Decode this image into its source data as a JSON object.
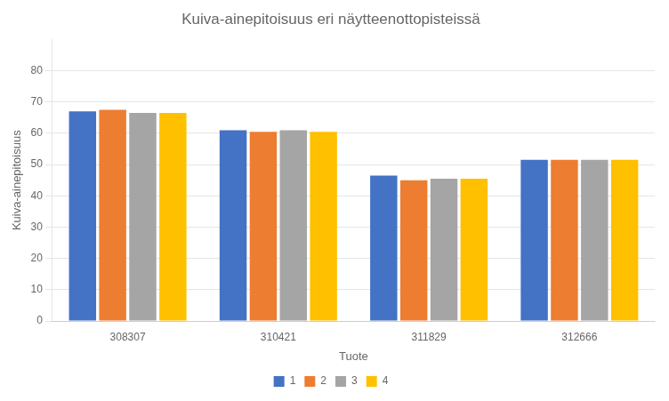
{
  "chart_data": {
    "type": "bar",
    "title": "Kuiva-ainepitoisuus eri näytteenottopisteissä",
    "xlabel": "Tuote",
    "ylabel": "Kuiva-ainepitoisuus",
    "categories": [
      "308307",
      "310421",
      "311829",
      "312666"
    ],
    "series": [
      {
        "name": "1",
        "color": "#4472C4",
        "values": [
          67.0,
          61.0,
          46.5,
          51.5
        ]
      },
      {
        "name": "2",
        "color": "#ED7D31",
        "values": [
          67.5,
          60.5,
          45.0,
          51.5
        ]
      },
      {
        "name": "3",
        "color": "#A5A5A5",
        "values": [
          66.5,
          61.0,
          45.5,
          51.5
        ]
      },
      {
        "name": "4",
        "color": "#FFC000",
        "values": [
          66.5,
          60.5,
          45.5,
          51.5
        ]
      }
    ],
    "ylim": [
      0,
      90
    ],
    "yticks": [
      0,
      10,
      20,
      30,
      40,
      50,
      60,
      70,
      80
    ],
    "grid": true,
    "legend": "bottom"
  }
}
